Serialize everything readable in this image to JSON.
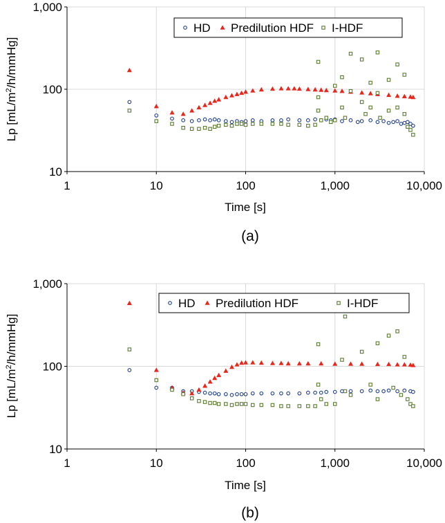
{
  "chart_data": [
    {
      "type": "scatter",
      "panel": "(a)",
      "caption": "(a)",
      "xlabel": "Time [s]",
      "ylabel_main": "Lp [mL/m",
      "ylabel_sup": "2",
      "ylabel_tail": "/h/mmHg]",
      "xscale": "log",
      "yscale": "log",
      "xlim": [
        1,
        10000
      ],
      "ylim": [
        10,
        1000
      ],
      "xticks": [
        1,
        10,
        100,
        1000,
        10000
      ],
      "xtick_labels": [
        "1",
        "10",
        "100",
        "1,000",
        "10,000"
      ],
      "yticks": [
        10,
        100,
        1000
      ],
      "ytick_labels": [
        "10",
        "100",
        "1,000"
      ],
      "grid": "major",
      "legend_position": "top-right",
      "series": [
        {
          "name": "HD",
          "marker": "circle",
          "color": "#1f3e8c",
          "x": [
            5,
            10,
            15,
            20,
            25,
            30,
            35,
            40,
            45,
            50,
            60,
            70,
            80,
            90,
            100,
            120,
            150,
            200,
            250,
            300,
            400,
            500,
            600,
            700,
            800,
            900,
            1000,
            1200,
            1500,
            1800,
            2000,
            2500,
            3000,
            3500,
            4000,
            4500,
            5000,
            5500,
            6000,
            6500,
            7000,
            7500
          ],
          "values": [
            70,
            48,
            44,
            42,
            41,
            42,
            43,
            42,
            43,
            42,
            41,
            40,
            41,
            40,
            41,
            42,
            41,
            42,
            42,
            43,
            42,
            42,
            43,
            42,
            43,
            42,
            43,
            41,
            42,
            40,
            41,
            42,
            40,
            41,
            39,
            40,
            41,
            38,
            39,
            40,
            38,
            36
          ]
        },
        {
          "name": "Predilution HDF",
          "marker": "triangle",
          "color": "#e8261c",
          "x": [
            5,
            10,
            15,
            20,
            25,
            30,
            35,
            40,
            45,
            50,
            60,
            70,
            80,
            90,
            100,
            120,
            150,
            200,
            250,
            300,
            350,
            400,
            500,
            600,
            700,
            800,
            1000,
            1200,
            1500,
            2000,
            2500,
            3000,
            4000,
            5000,
            6000,
            7000,
            7500
          ],
          "values": [
            170,
            62,
            52,
            50,
            55,
            60,
            64,
            68,
            72,
            75,
            80,
            84,
            87,
            90,
            93,
            96,
            99,
            101,
            102,
            102,
            102,
            101,
            100,
            99,
            98,
            97,
            96,
            95,
            93,
            91,
            89,
            87,
            85,
            83,
            82,
            81,
            80
          ]
        },
        {
          "name": "I-HDF",
          "marker": "square",
          "color": "#5a7a2e",
          "x": [
            5,
            10,
            15,
            20,
            25,
            30,
            35,
            40,
            45,
            50,
            60,
            70,
            80,
            90,
            100,
            120,
            150,
            200,
            250,
            300,
            400,
            500,
            600,
            650,
            650,
            650,
            700,
            800,
            900,
            1000,
            1000,
            1200,
            1200,
            1300,
            1500,
            1500,
            2000,
            2000,
            2200,
            2500,
            2500,
            3000,
            3000,
            3200,
            4000,
            4000,
            5000,
            5000,
            6000,
            6000,
            6500,
            7000,
            7500
          ],
          "values": [
            55,
            41,
            38,
            34,
            33,
            33,
            34,
            33,
            35,
            36,
            37,
            36,
            38,
            38,
            37,
            38,
            38,
            38,
            38,
            37,
            37,
            36,
            37,
            215,
            80,
            55,
            42,
            45,
            40,
            42,
            110,
            140,
            60,
            45,
            270,
            95,
            230,
            70,
            50,
            120,
            60,
            280,
            90,
            45,
            130,
            55,
            200,
            60,
            150,
            50,
            35,
            32,
            28
          ]
        }
      ]
    },
    {
      "type": "scatter",
      "panel": "(b)",
      "caption": "(b)",
      "xlabel": "Time [s]",
      "ylabel_main": "Lp [mL/m",
      "ylabel_sup": "2",
      "ylabel_tail": "/h/mmHg]",
      "xscale": "log",
      "yscale": "log",
      "xlim": [
        1,
        10000
      ],
      "ylim": [
        10,
        1000
      ],
      "xticks": [
        1,
        10,
        100,
        1000,
        10000
      ],
      "xtick_labels": [
        "1",
        "10",
        "100",
        "1,000",
        "10,000"
      ],
      "yticks": [
        10,
        100,
        1000
      ],
      "ytick_labels": [
        "10",
        "100",
        "1,000"
      ],
      "grid": "major",
      "legend_position": "top-right",
      "series": [
        {
          "name": "HD",
          "marker": "circle",
          "color": "#1f3e8c",
          "x": [
            5,
            10,
            15,
            20,
            25,
            30,
            35,
            40,
            45,
            50,
            60,
            70,
            80,
            90,
            100,
            120,
            150,
            200,
            250,
            300,
            400,
            500,
            600,
            700,
            800,
            1000,
            1200,
            1500,
            2000,
            2500,
            3000,
            3500,
            4000,
            5000,
            6000,
            7000,
            7500
          ],
          "values": [
            90,
            55,
            55,
            50,
            50,
            49,
            48,
            47,
            47,
            46,
            46,
            45,
            46,
            46,
            46,
            47,
            47,
            47,
            47,
            47,
            47,
            48,
            48,
            48,
            49,
            49,
            50,
            50,
            50,
            51,
            50,
            50,
            51,
            50,
            51,
            50,
            49
          ]
        },
        {
          "name": "Predilution HDF",
          "marker": "triangle",
          "color": "#e8261c",
          "x": [
            5,
            10,
            15,
            20,
            25,
            30,
            35,
            40,
            45,
            50,
            60,
            70,
            80,
            90,
            100,
            120,
            150,
            200,
            250,
            300,
            400,
            500,
            700,
            1000,
            1500,
            2000,
            3000,
            4000,
            5000,
            6000,
            7000,
            7500
          ],
          "values": [
            580,
            90,
            55,
            48,
            47,
            52,
            58,
            65,
            72,
            78,
            88,
            98,
            105,
            110,
            111,
            111,
            110,
            109,
            109,
            108,
            108,
            108,
            108,
            107,
            107,
            107,
            106,
            106,
            105,
            105,
            104,
            103
          ]
        },
        {
          "name": "I-HDF",
          "marker": "square",
          "color": "#5a7a2e",
          "x": [
            5,
            10,
            15,
            20,
            25,
            30,
            35,
            40,
            45,
            50,
            60,
            70,
            80,
            90,
            100,
            120,
            150,
            200,
            250,
            300,
            400,
            500,
            600,
            650,
            650,
            700,
            800,
            1000,
            1200,
            1300,
            1300,
            1500,
            2000,
            2500,
            3000,
            3000,
            4000,
            4500,
            5000,
            5500,
            6000,
            6500,
            7000,
            7500
          ],
          "values": [
            160,
            68,
            52,
            46,
            41,
            38,
            37,
            36,
            36,
            35,
            35,
            34,
            35,
            35,
            35,
            34,
            34,
            34,
            33,
            33,
            33,
            33,
            33,
            185,
            60,
            40,
            35,
            35,
            120,
            400,
            50,
            45,
            150,
            60,
            190,
            40,
            235,
            55,
            265,
            45,
            130,
            40,
            35,
            33
          ]
        }
      ]
    }
  ]
}
